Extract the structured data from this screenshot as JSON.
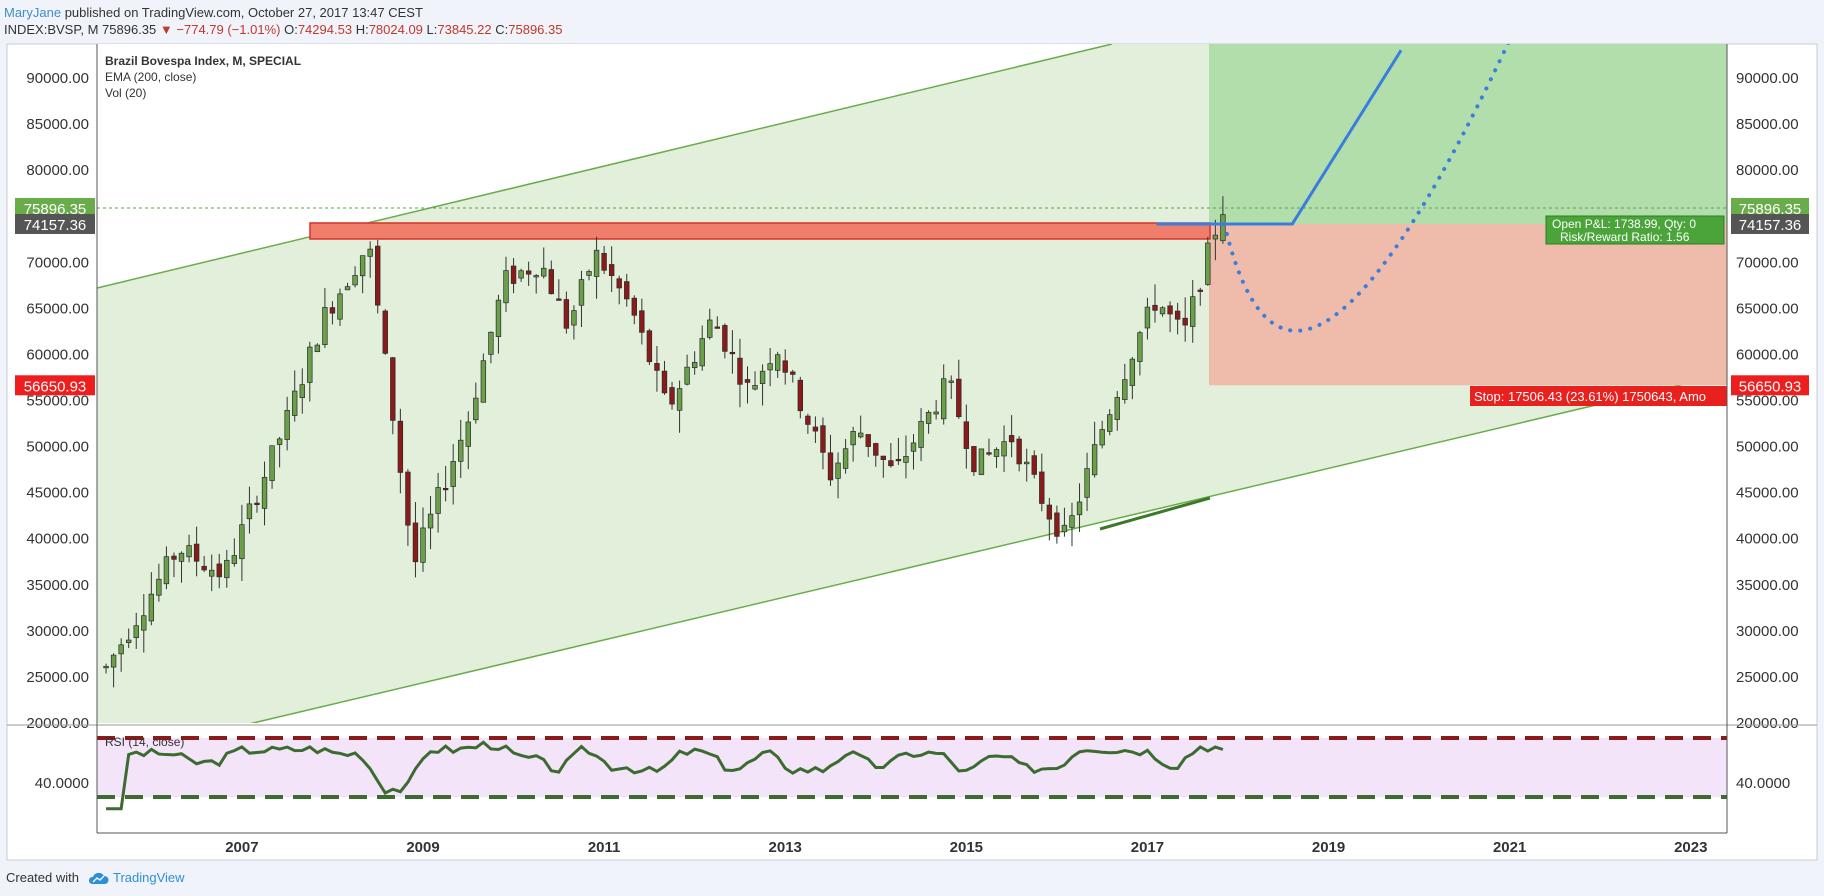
{
  "header": {
    "author": "MaryJane",
    "published": "published on TradingView.com, October 27, 2017 13:47 CEST",
    "symbol": "INDEX:BVSP, M",
    "last": "75896.35",
    "change": "−774.79 (−1.01%)",
    "open_label": "O:",
    "open": "74294.53",
    "high_label": "H:",
    "high": "78024.09",
    "low_label": "L:",
    "low": "73845.22",
    "close_label": "C:",
    "close": "75896.35"
  },
  "legend": [
    "Brazil Bovespa Index, M, SPECIAL",
    "EMA (200, close)",
    "Vol (20)"
  ],
  "rsi_label": "RSI (14, close)",
  "footer": {
    "created_with": "Created with",
    "brand": "TradingView",
    "logo_icon": "tradingview-cloud-icon"
  },
  "position": {
    "open_pnl": "Open P&L: 1738.99, Qty: 0",
    "risk_reward": "Risk/Reward Ratio: 1.56",
    "stop": "Stop: 17506.43 (23.61%) 1750643, Amo"
  },
  "price_markers": {
    "last": "75896.35",
    "entry": "74157.36",
    "stop": "56650.93"
  },
  "colors": {
    "up": "#6ba04a",
    "down": "#8b1a1a",
    "channel": "#6aac4a",
    "target": "#b2deac",
    "stop_zone": "#efbbab",
    "resistance": "#ef7f6b",
    "projection": "#3b7ddd",
    "rsi_band": "#f3e4fa",
    "rsi_line": "#3c6b2f"
  },
  "chart_data": {
    "type": "candlestick",
    "timeframe": "M",
    "x_ticks": [
      "2007",
      "2009",
      "2011",
      "2013",
      "2015",
      "2017",
      "2019",
      "2021",
      "2023"
    ],
    "ylim": [
      20000,
      93000
    ],
    "y_ticks": [
      "90000.00",
      "85000.00",
      "80000.00",
      "75000.00",
      "70000.00",
      "65000.00",
      "60000.00",
      "55000.00",
      "50000.00",
      "45000.00",
      "40000.00",
      "35000.00",
      "30000.00",
      "25000.00",
      "20000.00"
    ],
    "rsi": {
      "levels": [
        30,
        70
      ],
      "tick": "40.0000"
    },
    "key_points": [
      {
        "x": 2005.5,
        "y": 26000
      },
      {
        "x": 2006.3,
        "y": 39000
      },
      {
        "x": 2006.8,
        "y": 36000
      },
      {
        "x": 2007.5,
        "y": 53000
      },
      {
        "x": 2007.9,
        "y": 64000
      },
      {
        "x": 2008.4,
        "y": 72000
      },
      {
        "x": 2008.9,
        "y": 37000
      },
      {
        "x": 2009.0,
        "y": 40000
      },
      {
        "x": 2009.5,
        "y": 53000
      },
      {
        "x": 2009.9,
        "y": 68000
      },
      {
        "x": 2010.3,
        "y": 70000
      },
      {
        "x": 2010.6,
        "y": 63000
      },
      {
        "x": 2010.9,
        "y": 71000
      },
      {
        "x": 2011.3,
        "y": 65000
      },
      {
        "x": 2011.7,
        "y": 54000
      },
      {
        "x": 2012.2,
        "y": 64000
      },
      {
        "x": 2012.6,
        "y": 56000
      },
      {
        "x": 2012.9,
        "y": 61000
      },
      {
        "x": 2013.5,
        "y": 47000
      },
      {
        "x": 2013.8,
        "y": 52000
      },
      {
        "x": 2014.2,
        "y": 47000
      },
      {
        "x": 2014.8,
        "y": 57000
      },
      {
        "x": 2015.1,
        "y": 48000
      },
      {
        "x": 2015.5,
        "y": 51000
      },
      {
        "x": 2015.9,
        "y": 43000
      },
      {
        "x": 2016.1,
        "y": 40000
      },
      {
        "x": 2016.5,
        "y": 52000
      },
      {
        "x": 2016.9,
        "y": 62000
      },
      {
        "x": 2017.1,
        "y": 66000
      },
      {
        "x": 2017.4,
        "y": 62000
      },
      {
        "x": 2017.7,
        "y": 72000
      },
      {
        "x": 2017.83,
        "y": 75896
      }
    ],
    "levels": {
      "last": 75896.35,
      "entry": 74157.36,
      "stop": 56650.93,
      "target_top": 93000
    },
    "projection_curve": {
      "from": {
        "x": 2017.85,
        "y": 74157
      },
      "trough": {
        "x": 2018.6,
        "y": 58000
      },
      "to": {
        "x": 2021.1,
        "y": 93000
      }
    },
    "projection_line": [
      {
        "x": 2017.1,
        "y": 74157
      },
      {
        "x": 2018.6,
        "y": 74157
      },
      {
        "x": 2019.8,
        "y": 93000
      }
    ]
  }
}
